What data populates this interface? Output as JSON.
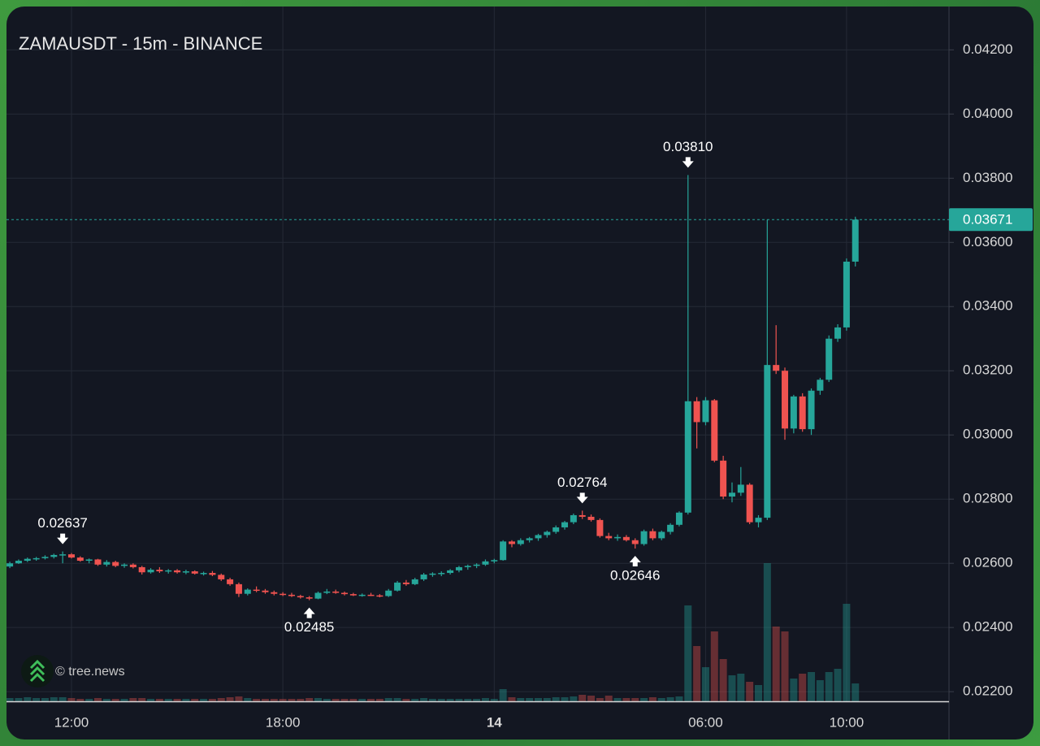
{
  "chart_data": {
    "type": "candlestick",
    "title": "ZAMAUSDT - 15m - BINANCE",
    "watermark": "© tree.news",
    "up_color": "#26a69a",
    "down_color": "#ef5350",
    "grid": true,
    "ylim": [
      0.0217,
      0.0433
    ],
    "yticks": [
      {
        "value": 0.022,
        "label": "0.02200"
      },
      {
        "value": 0.024,
        "label": "0.02400"
      },
      {
        "value": 0.026,
        "label": "0.02600"
      },
      {
        "value": 0.028,
        "label": "0.02800"
      },
      {
        "value": 0.03,
        "label": "0.03000"
      },
      {
        "value": 0.032,
        "label": "0.03200"
      },
      {
        "value": 0.034,
        "label": "0.03400"
      },
      {
        "value": 0.036,
        "label": "0.03600"
      },
      {
        "value": 0.038,
        "label": "0.03800"
      },
      {
        "value": 0.04,
        "label": "0.04000"
      },
      {
        "value": 0.042,
        "label": "0.04200"
      }
    ],
    "last_price": {
      "value": 0.03671,
      "label": "0.03671"
    },
    "annotations": [
      {
        "label": "0.02637",
        "value": 0.02637,
        "side": "high"
      },
      {
        "label": "0.02485",
        "value": 0.02485,
        "side": "low"
      },
      {
        "label": "0.02764",
        "value": 0.02764,
        "side": "high"
      },
      {
        "label": "0.02646",
        "value": 0.02646,
        "side": "low"
      },
      {
        "label": "0.03810",
        "value": 0.0381,
        "side": "high"
      }
    ],
    "categories": [
      null,
      null,
      null,
      null,
      null,
      null,
      null,
      "12:00",
      null,
      null,
      null,
      null,
      null,
      null,
      null,
      null,
      null,
      null,
      null,
      null,
      null,
      null,
      null,
      null,
      null,
      null,
      null,
      null,
      null,
      null,
      null,
      "18:00",
      null,
      null,
      null,
      null,
      null,
      null,
      null,
      null,
      null,
      null,
      null,
      null,
      null,
      null,
      null,
      null,
      null,
      null,
      null,
      null,
      null,
      null,
      null,
      "14",
      null,
      null,
      null,
      null,
      null,
      null,
      null,
      null,
      null,
      null,
      null,
      null,
      null,
      null,
      null,
      null,
      null,
      null,
      null,
      null,
      null,
      null,
      null,
      "06:00",
      null,
      null,
      null,
      null,
      null,
      null,
      null,
      null,
      null,
      null,
      null,
      null,
      null,
      null,
      null,
      "10:00",
      null
    ],
    "candles": [
      [
        0.0259,
        0.02605,
        0.02585,
        0.026
      ],
      [
        0.026,
        0.02612,
        0.02598,
        0.02608
      ],
      [
        0.02608,
        0.02618,
        0.02604,
        0.02614
      ],
      [
        0.02614,
        0.0262,
        0.02608,
        0.02616
      ],
      [
        0.02616,
        0.02625,
        0.02612,
        0.0262
      ],
      [
        0.0262,
        0.0263,
        0.02615,
        0.02626
      ],
      [
        0.02626,
        0.02637,
        0.026,
        0.02628
      ],
      [
        0.02628,
        0.02632,
        0.02615,
        0.02618
      ],
      [
        0.02618,
        0.02622,
        0.02605,
        0.02608
      ],
      [
        0.02608,
        0.02615,
        0.026,
        0.02612
      ],
      [
        0.02612,
        0.02614,
        0.02592,
        0.02596
      ],
      [
        0.02596,
        0.0261,
        0.0259,
        0.02604
      ],
      [
        0.02604,
        0.02608,
        0.02588,
        0.02592
      ],
      [
        0.02592,
        0.026,
        0.02586,
        0.02596
      ],
      [
        0.02596,
        0.026,
        0.02584,
        0.02588
      ],
      [
        0.02588,
        0.02592,
        0.02565,
        0.02572
      ],
      [
        0.02572,
        0.02585,
        0.02568,
        0.0258
      ],
      [
        0.0258,
        0.02588,
        0.0257,
        0.02575
      ],
      [
        0.02575,
        0.02582,
        0.02568,
        0.02578
      ],
      [
        0.02578,
        0.02582,
        0.02568,
        0.02572
      ],
      [
        0.02572,
        0.0258,
        0.02566,
        0.02575
      ],
      [
        0.02575,
        0.02578,
        0.02565,
        0.02568
      ],
      [
        0.02568,
        0.02574,
        0.02562,
        0.0257
      ],
      [
        0.0257,
        0.02576,
        0.0256,
        0.02564
      ],
      [
        0.02564,
        0.02568,
        0.02545,
        0.0255
      ],
      [
        0.0255,
        0.02555,
        0.0253,
        0.02535
      ],
      [
        0.02535,
        0.0254,
        0.02495,
        0.02505
      ],
      [
        0.02505,
        0.02522,
        0.025,
        0.02518
      ],
      [
        0.02518,
        0.02528,
        0.0251,
        0.02515
      ],
      [
        0.02515,
        0.0252,
        0.02505,
        0.0251
      ],
      [
        0.0251,
        0.02515,
        0.025,
        0.02505
      ],
      [
        0.02505,
        0.0251,
        0.02498,
        0.02502
      ],
      [
        0.02502,
        0.02508,
        0.02495,
        0.02498
      ],
      [
        0.02498,
        0.02502,
        0.0249,
        0.02494
      ],
      [
        0.02494,
        0.02498,
        0.02485,
        0.0249
      ],
      [
        0.0249,
        0.02512,
        0.02488,
        0.02508
      ],
      [
        0.02508,
        0.0252,
        0.02504,
        0.02512
      ],
      [
        0.02512,
        0.02518,
        0.02505,
        0.02508
      ],
      [
        0.02508,
        0.02512,
        0.025,
        0.02504
      ],
      [
        0.02504,
        0.02508,
        0.02498,
        0.025
      ],
      [
        0.025,
        0.02506,
        0.02496,
        0.02502
      ],
      [
        0.02502,
        0.02508,
        0.02498,
        0.025
      ],
      [
        0.025,
        0.02504,
        0.02494,
        0.02498
      ],
      [
        0.02498,
        0.0252,
        0.02495,
        0.02515
      ],
      [
        0.02515,
        0.02545,
        0.02512,
        0.0254
      ],
      [
        0.0254,
        0.02548,
        0.0253,
        0.02535
      ],
      [
        0.02535,
        0.02555,
        0.02532,
        0.0255
      ],
      [
        0.0255,
        0.0257,
        0.02545,
        0.02565
      ],
      [
        0.02565,
        0.02572,
        0.02558,
        0.02568
      ],
      [
        0.02568,
        0.02575,
        0.0256,
        0.0257
      ],
      [
        0.0257,
        0.02582,
        0.02565,
        0.02578
      ],
      [
        0.02578,
        0.02592,
        0.02572,
        0.02588
      ],
      [
        0.02588,
        0.02596,
        0.0258,
        0.02592
      ],
      [
        0.02592,
        0.026,
        0.02585,
        0.02596
      ],
      [
        0.02596,
        0.02612,
        0.02592,
        0.02606
      ],
      [
        0.02606,
        0.02614,
        0.026,
        0.0261
      ],
      [
        0.0261,
        0.02672,
        0.02608,
        0.02668
      ],
      [
        0.02668,
        0.02672,
        0.0265,
        0.0266
      ],
      [
        0.0266,
        0.02678,
        0.02655,
        0.02672
      ],
      [
        0.02672,
        0.02682,
        0.02665,
        0.02678
      ],
      [
        0.02678,
        0.02692,
        0.0267,
        0.02688
      ],
      [
        0.02688,
        0.02702,
        0.0268,
        0.02698
      ],
      [
        0.02698,
        0.02718,
        0.02692,
        0.02712
      ],
      [
        0.02712,
        0.02732,
        0.02705,
        0.02728
      ],
      [
        0.02728,
        0.02755,
        0.02722,
        0.0275
      ],
      [
        0.0275,
        0.02764,
        0.02738,
        0.02745
      ],
      [
        0.02745,
        0.02752,
        0.0273,
        0.02735
      ],
      [
        0.02735,
        0.0274,
        0.0268,
        0.02685
      ],
      [
        0.02685,
        0.02695,
        0.02672,
        0.02678
      ],
      [
        0.02678,
        0.0269,
        0.0267,
        0.02682
      ],
      [
        0.02682,
        0.02688,
        0.02668,
        0.02672
      ],
      [
        0.02672,
        0.02678,
        0.02646,
        0.0266
      ],
      [
        0.0266,
        0.02705,
        0.02655,
        0.027
      ],
      [
        0.027,
        0.02708,
        0.02672,
        0.02678
      ],
      [
        0.02678,
        0.02702,
        0.02672,
        0.02698
      ],
      [
        0.02698,
        0.02725,
        0.0269,
        0.0272
      ],
      [
        0.0272,
        0.02762,
        0.02715,
        0.02758
      ],
      [
        0.02758,
        0.0381,
        0.02752,
        0.03105
      ],
      [
        0.03105,
        0.03118,
        0.02958,
        0.0304
      ],
      [
        0.0304,
        0.03118,
        0.0303,
        0.03108
      ],
      [
        0.03108,
        0.03112,
        0.02915,
        0.0292
      ],
      [
        0.0292,
        0.02935,
        0.028,
        0.02808
      ],
      [
        0.02808,
        0.02852,
        0.0279,
        0.0282
      ],
      [
        0.0282,
        0.029,
        0.0281,
        0.02845
      ],
      [
        0.02845,
        0.0285,
        0.02722,
        0.02728
      ],
      [
        0.02728,
        0.0275,
        0.02712,
        0.02742
      ],
      [
        0.02742,
        0.03671,
        0.02735,
        0.03218
      ],
      [
        0.03218,
        0.03342,
        0.0319,
        0.032
      ],
      [
        0.032,
        0.0321,
        0.02985,
        0.0302
      ],
      [
        0.0302,
        0.03125,
        0.03005,
        0.0312
      ],
      [
        0.0312,
        0.0313,
        0.0301,
        0.03018
      ],
      [
        0.03018,
        0.03145,
        0.03,
        0.03138
      ],
      [
        0.03138,
        0.03178,
        0.03125,
        0.03172
      ],
      [
        0.03172,
        0.0331,
        0.03165,
        0.033
      ],
      [
        0.033,
        0.03345,
        0.0329,
        0.03335
      ],
      [
        0.03335,
        0.0355,
        0.03325,
        0.0354
      ],
      [
        0.0354,
        0.0368,
        0.03525,
        0.03671
      ]
    ],
    "volume": [
      4,
      4,
      5,
      4,
      4,
      5,
      5,
      4,
      3,
      3,
      4,
      3,
      3,
      3,
      4,
      4,
      3,
      3,
      3,
      3,
      3,
      3,
      3,
      3,
      4,
      5,
      6,
      4,
      3,
      3,
      3,
      3,
      3,
      3,
      4,
      4,
      3,
      3,
      3,
      3,
      3,
      3,
      3,
      4,
      4,
      3,
      3,
      4,
      3,
      3,
      3,
      3,
      3,
      3,
      4,
      3,
      15,
      5,
      4,
      4,
      4,
      4,
      5,
      5,
      6,
      8,
      7,
      4,
      7,
      4,
      4,
      4,
      4,
      5,
      4,
      5,
      6,
      118,
      68,
      42,
      86,
      52,
      32,
      34,
      24,
      20,
      170,
      92,
      86,
      28,
      34,
      36,
      26,
      36,
      40,
      120,
      22
    ]
  }
}
